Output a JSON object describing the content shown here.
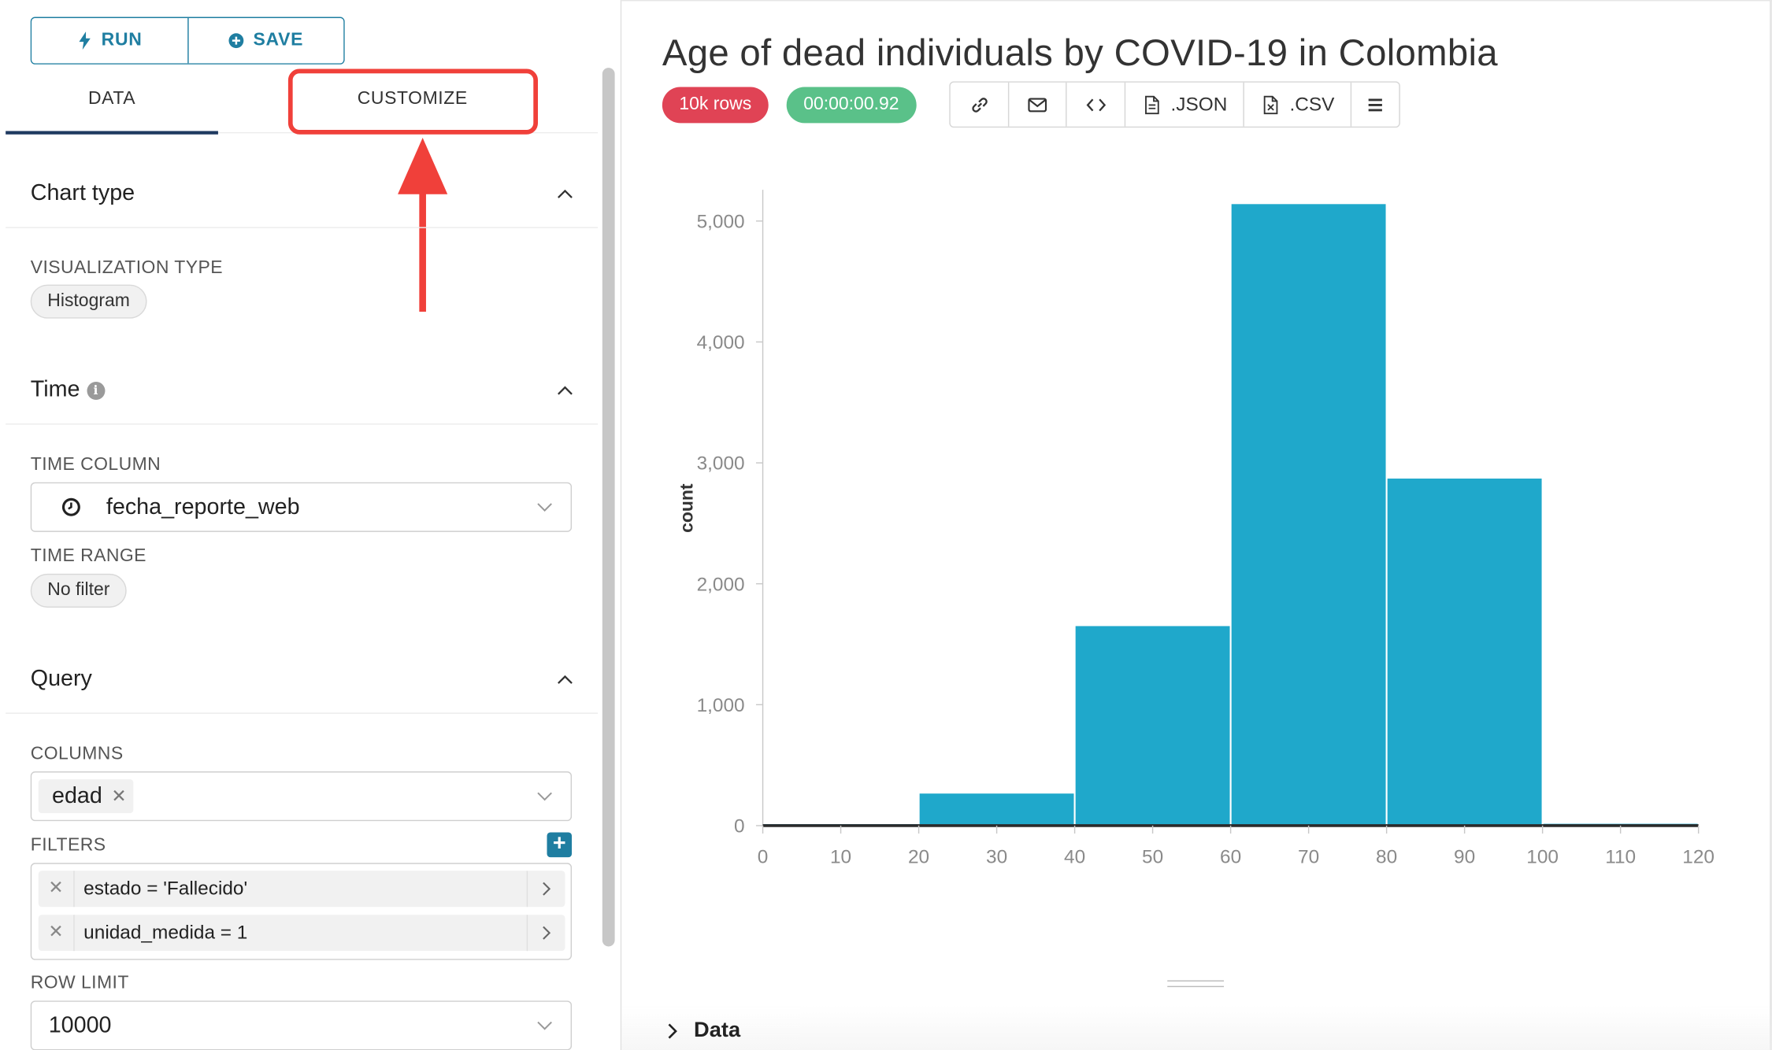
{
  "actions": {
    "run_label": "RUN",
    "save_label": "SAVE"
  },
  "tabs": {
    "data_label": "DATA",
    "customize_label": "CUSTOMIZE"
  },
  "chart_type_section": {
    "title": "Chart type",
    "viz_label": "VISUALIZATION TYPE",
    "viz_value": "Histogram"
  },
  "time_section": {
    "title": "Time",
    "column_label": "TIME COLUMN",
    "column_value": "fecha_reporte_web",
    "range_label": "TIME RANGE",
    "range_value": "No filter"
  },
  "query_section": {
    "title": "Query",
    "columns_label": "COLUMNS",
    "column_tag": "edad",
    "filters_label": "FILTERS",
    "filters": [
      "estado = 'Fallecido'",
      "unidad_medida = 1"
    ],
    "row_limit_label": "ROW LIMIT",
    "row_limit_value": "10000"
  },
  "header": {
    "title": "Age of dead individuals by COVID-19 in Colombia",
    "rows_badge": "10k rows",
    "time_badge": "00:00:00.92",
    "json_label": ".JSON",
    "csv_label": ".CSV"
  },
  "data_toggle_label": "Data",
  "colors": {
    "accent": "#1f7ea1",
    "bar": "#1fa8cb",
    "rows_badge": "#e04355",
    "time_badge": "#5ac189",
    "highlight": "#f0403a"
  },
  "chart_data": {
    "type": "bar",
    "title": "Age of dead individuals by COVID-19 in Colombia",
    "xlabel": "",
    "ylabel": "count",
    "bins": [
      [
        0,
        20
      ],
      [
        20,
        40
      ],
      [
        40,
        60
      ],
      [
        60,
        80
      ],
      [
        80,
        100
      ],
      [
        100,
        120
      ]
    ],
    "values": [
      12,
      265,
      1650,
      5140,
      2870,
      15
    ],
    "xlim": [
      0,
      120
    ],
    "ylim": [
      0,
      5100
    ],
    "x_ticks": [
      0,
      10,
      20,
      30,
      40,
      50,
      60,
      70,
      80,
      90,
      100,
      110,
      120
    ],
    "y_ticks": [
      0,
      1000,
      2000,
      3000,
      4000,
      5000
    ],
    "y_tick_labels": [
      "0",
      "1,000",
      "2,000",
      "3,000",
      "4,000",
      "5,000"
    ],
    "grid": false,
    "legend": "none"
  }
}
